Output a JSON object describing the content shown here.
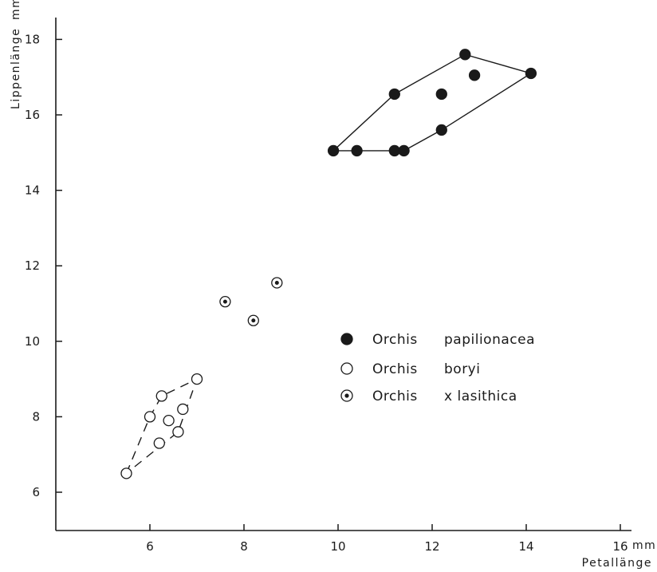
{
  "chart_data": {
    "type": "scatter",
    "title": "",
    "xlabel": "Petallänge",
    "xunit": "mm",
    "ylabel": "Lippenlänge",
    "yunit": "mm",
    "xlim": [
      4,
      16
    ],
    "ylim": [
      5,
      18.5
    ],
    "x_ticks": [
      6,
      8,
      10,
      12,
      14,
      16
    ],
    "y_ticks": [
      6,
      8,
      10,
      12,
      14,
      16,
      18
    ],
    "x_tick_labels": [
      "6",
      "8",
      "10",
      "12",
      "14",
      "16"
    ],
    "y_tick_labels": [
      "6",
      "8",
      "10",
      "12",
      "14",
      "16",
      "18"
    ],
    "grid": false,
    "legend_position": "center-right",
    "series": [
      {
        "name": "Orchis papilionacea",
        "name_parts": [
          "Orchis",
          "papilionacea"
        ],
        "marker": "filled-circle",
        "hull": "solid",
        "x": [
          9.9,
          10.4,
          11.2,
          11.4,
          11.2,
          12.2,
          12.2,
          12.7,
          12.9,
          14.1
        ],
        "y": [
          15.05,
          15.05,
          15.05,
          15.05,
          16.55,
          16.55,
          15.6,
          17.6,
          17.05,
          17.1
        ],
        "hull_order": [
          0,
          4,
          7,
          9,
          6,
          3
        ]
      },
      {
        "name": "Orchis boryi",
        "name_parts": [
          "Orchis",
          "boryi"
        ],
        "marker": "open-circle",
        "hull": "dashed",
        "x": [
          5.5,
          6.0,
          6.25,
          6.2,
          6.4,
          6.6,
          6.7,
          7.0
        ],
        "y": [
          6.5,
          8.0,
          8.55,
          7.3,
          7.9,
          7.6,
          8.2,
          9.0
        ],
        "hull_order": [
          0,
          1,
          2,
          7,
          5
        ]
      },
      {
        "name": "Orchis x lasithica",
        "name_parts": [
          "Orchis",
          "x lasithica"
        ],
        "marker": "dotted-circle",
        "hull": "none",
        "x": [
          7.6,
          8.2,
          8.7
        ],
        "y": [
          11.05,
          10.55,
          11.55
        ],
        "hull_order": []
      }
    ]
  }
}
